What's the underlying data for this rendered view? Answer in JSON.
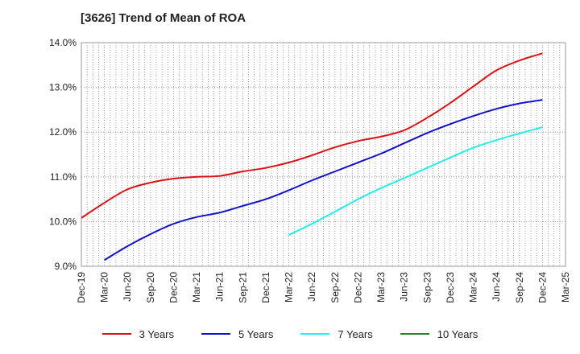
{
  "chart_data": {
    "type": "line",
    "title": "[3626]  Trend of Mean of ROA",
    "xlabel": "",
    "ylabel": "",
    "x": [
      "Dec-19",
      "Mar-20",
      "Jun-20",
      "Sep-20",
      "Dec-20",
      "Mar-21",
      "Jun-21",
      "Sep-21",
      "Dec-21",
      "Mar-22",
      "Jun-22",
      "Sep-22",
      "Dec-22",
      "Mar-23",
      "Jun-23",
      "Sep-23",
      "Dec-23",
      "Mar-24",
      "Jun-24",
      "Sep-24",
      "Dec-24",
      "Mar-25"
    ],
    "ylim": [
      9.0,
      14.0
    ],
    "yticks": [
      "9.0%",
      "10.0%",
      "11.0%",
      "12.0%",
      "13.0%",
      "14.0%"
    ],
    "grid": true,
    "legend_position": "bottom",
    "series": [
      {
        "name": "3 Years",
        "color": "#dd1111",
        "values": [
          10.08,
          10.42,
          10.72,
          10.87,
          10.96,
          11.0,
          11.02,
          11.12,
          11.2,
          11.32,
          11.48,
          11.66,
          11.8,
          11.9,
          12.04,
          12.32,
          12.65,
          13.02,
          13.38,
          13.6,
          13.76,
          null
        ]
      },
      {
        "name": "5 Years",
        "color": "#1111cc",
        "values": [
          null,
          9.14,
          9.45,
          9.72,
          9.95,
          10.1,
          10.2,
          10.35,
          10.5,
          10.7,
          10.92,
          11.12,
          11.32,
          11.52,
          11.75,
          11.98,
          12.18,
          12.36,
          12.52,
          12.64,
          12.72,
          null
        ]
      },
      {
        "name": "7 Years",
        "color": "#22eeee",
        "values": [
          null,
          null,
          null,
          null,
          null,
          null,
          null,
          null,
          null,
          9.7,
          9.95,
          10.22,
          10.5,
          10.75,
          10.97,
          11.2,
          11.43,
          11.65,
          11.82,
          11.97,
          12.11,
          null
        ]
      },
      {
        "name": "10 Years",
        "color": "#228822",
        "values": [
          null,
          null,
          null,
          null,
          null,
          null,
          null,
          null,
          null,
          null,
          null,
          null,
          null,
          null,
          null,
          null,
          null,
          null,
          null,
          null,
          null,
          null
        ]
      }
    ]
  }
}
